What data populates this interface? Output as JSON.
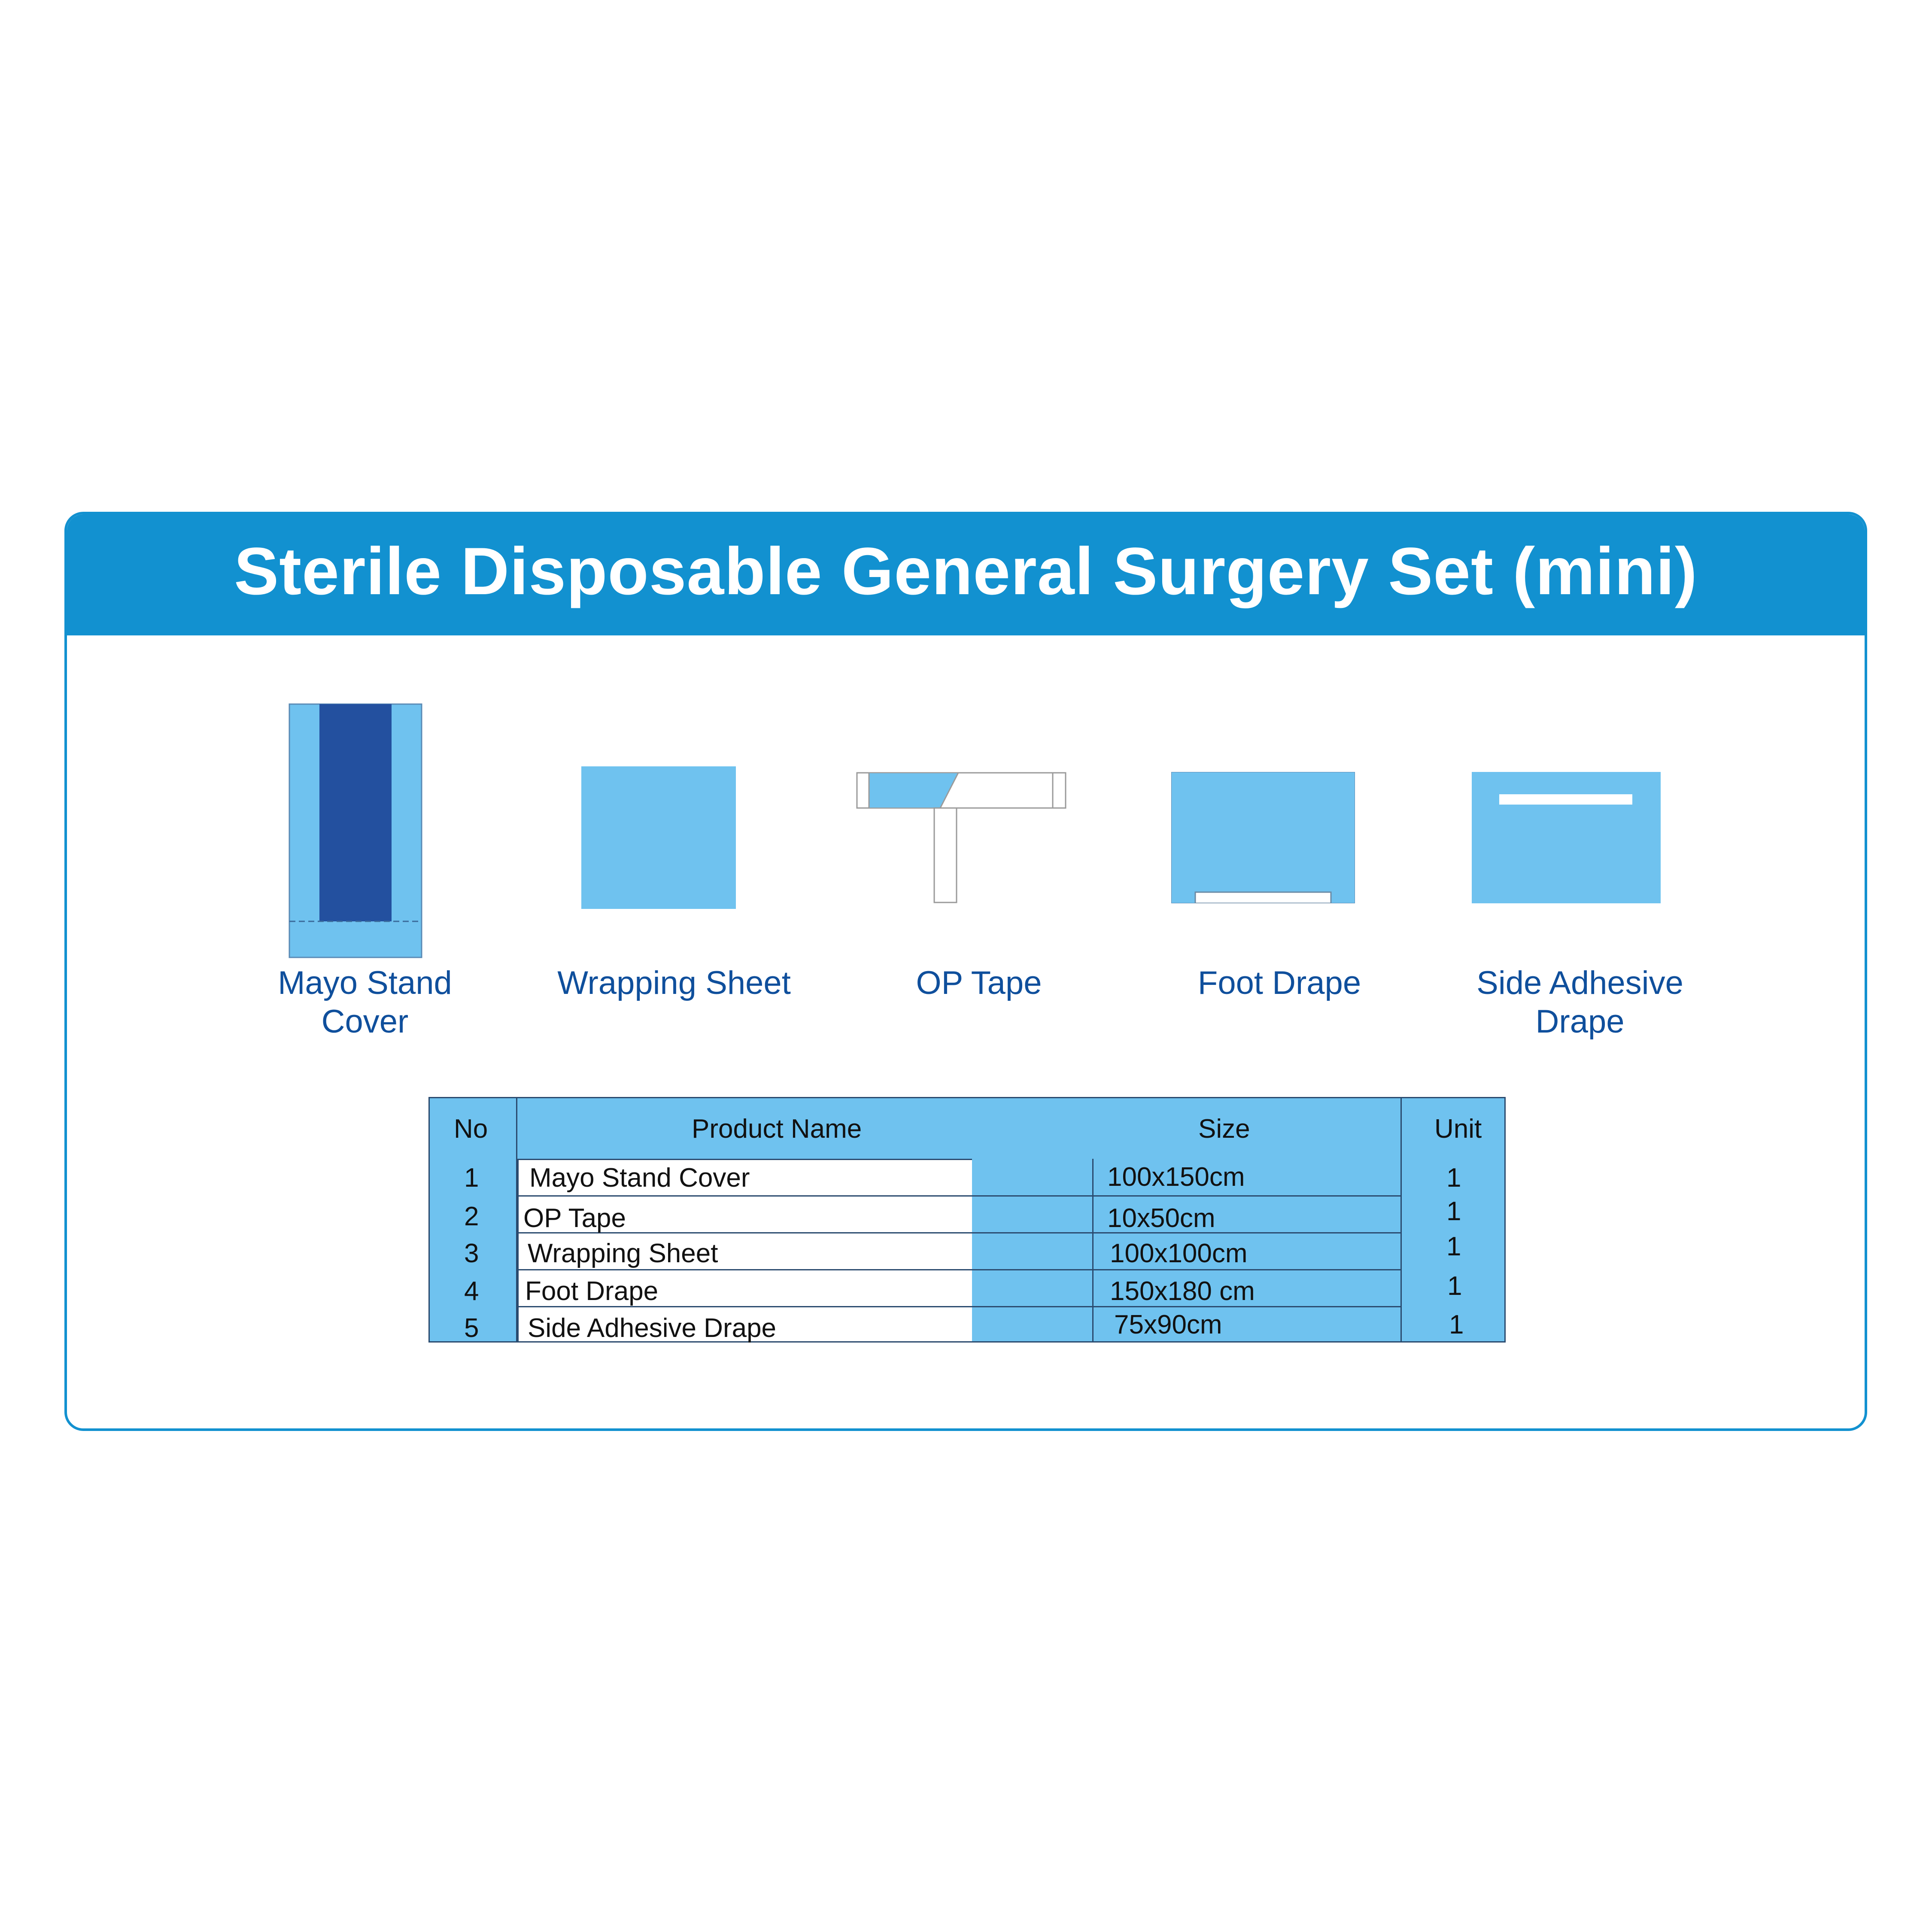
{
  "title": "Sterile Disposable General Surgery Set (mini)",
  "items": [
    {
      "caption": "Mayo Stand\nCover",
      "icon": "mayo-stand-cover-icon"
    },
    {
      "caption": "Wrapping Sheet",
      "icon": "wrapping-sheet-icon"
    },
    {
      "caption": "OP Tape",
      "icon": "op-tape-icon"
    },
    {
      "caption": "Foot Drape",
      "icon": "foot-drape-icon"
    },
    {
      "caption": "Side Adhesive\nDrape",
      "icon": "side-adhesive-drape-icon"
    }
  ],
  "table": {
    "headers": {
      "no": "No",
      "product": "Product Name",
      "size": "Size",
      "unit": "Unit"
    },
    "rows": [
      {
        "no": "1",
        "product": "Mayo Stand Cover",
        "size": "100x150cm",
        "unit": "1"
      },
      {
        "no": "2",
        "product": "OP Tape",
        "size": "10x50cm",
        "unit": "1"
      },
      {
        "no": "3",
        "product": "Wrapping Sheet",
        "size": "100x100cm",
        "unit": "1"
      },
      {
        "no": "4",
        "product": "Foot Drape",
        "size": "150x180 cm",
        "unit": "1"
      },
      {
        "no": "5",
        "product": "Side Adhesive Drape",
        "size": "75x90cm",
        "unit": "1"
      }
    ]
  },
  "colors": {
    "primary": "#1291d0",
    "light": "#6fc2ef",
    "dark": "#23509f",
    "text_blue": "#0f4f9c"
  }
}
